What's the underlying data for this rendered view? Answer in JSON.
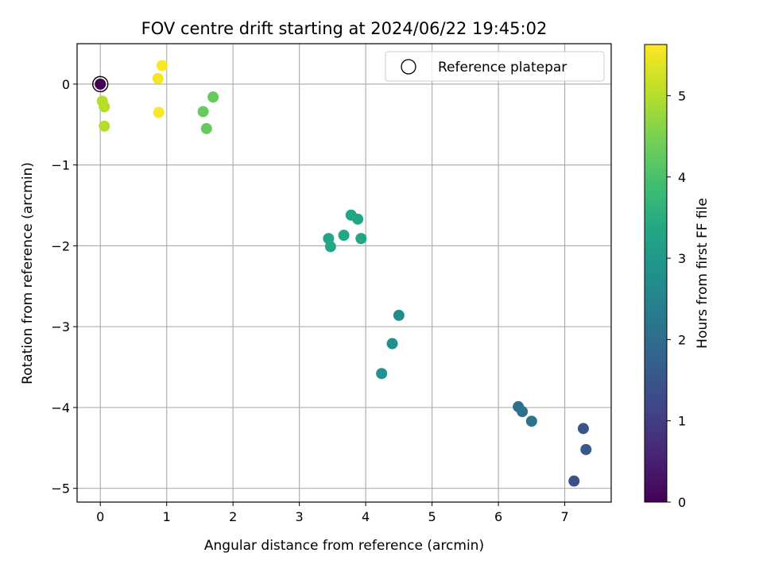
{
  "chart_data": {
    "type": "scatter",
    "title": "FOV centre drift starting at 2024/06/22 19:45:02",
    "xlabel": "Angular distance from reference (arcmin)",
    "ylabel": "Rotation from reference (arcmin)",
    "xlim": [
      -0.35,
      7.7
    ],
    "ylim": [
      -5.17,
      0.5
    ],
    "xticks": [
      0,
      1,
      2,
      3,
      4,
      5,
      6,
      7
    ],
    "yticks": [
      0,
      -1,
      -2,
      -3,
      -4,
      -5
    ],
    "grid": true,
    "colormap": "viridis",
    "colorbar": {
      "label": "Hours from first FF file",
      "range": [
        0,
        5.63
      ],
      "ticks": [
        0,
        1,
        2,
        3,
        4,
        5
      ]
    },
    "legend": {
      "position": "top-right",
      "entries": [
        "Reference platepar"
      ]
    },
    "points": [
      {
        "x": 0.0,
        "y": 0.0,
        "hours": 0.0
      },
      {
        "x": 7.14,
        "y": -4.91,
        "hours": 1.4
      },
      {
        "x": 7.28,
        "y": -4.26,
        "hours": 1.5
      },
      {
        "x": 7.32,
        "y": -4.52,
        "hours": 1.55
      },
      {
        "x": 6.3,
        "y": -3.99,
        "hours": 2.05
      },
      {
        "x": 6.36,
        "y": -4.05,
        "hours": 2.1
      },
      {
        "x": 6.5,
        "y": -4.17,
        "hours": 2.15
      },
      {
        "x": 4.5,
        "y": -2.86,
        "hours": 2.75
      },
      {
        "x": 4.4,
        "y": -3.21,
        "hours": 2.8
      },
      {
        "x": 4.24,
        "y": -3.58,
        "hours": 2.85
      },
      {
        "x": 3.44,
        "y": -1.91,
        "hours": 3.35
      },
      {
        "x": 3.47,
        "y": -2.01,
        "hours": 3.35
      },
      {
        "x": 3.67,
        "y": -1.87,
        "hours": 3.35
      },
      {
        "x": 3.78,
        "y": -1.62,
        "hours": 3.35
      },
      {
        "x": 3.88,
        "y": -1.67,
        "hours": 3.35
      },
      {
        "x": 3.93,
        "y": -1.91,
        "hours": 3.35
      },
      {
        "x": 1.55,
        "y": -0.34,
        "hours": 4.3
      },
      {
        "x": 1.6,
        "y": -0.55,
        "hours": 4.3
      },
      {
        "x": 1.7,
        "y": -0.16,
        "hours": 4.3
      },
      {
        "x": 0.03,
        "y": -0.21,
        "hours": 5.0
      },
      {
        "x": 0.06,
        "y": -0.28,
        "hours": 5.0
      },
      {
        "x": 0.06,
        "y": -0.52,
        "hours": 5.0
      },
      {
        "x": 0.87,
        "y": 0.07,
        "hours": 5.55
      },
      {
        "x": 0.93,
        "y": 0.23,
        "hours": 5.6
      },
      {
        "x": 0.88,
        "y": -0.35,
        "hours": 5.6
      }
    ]
  }
}
